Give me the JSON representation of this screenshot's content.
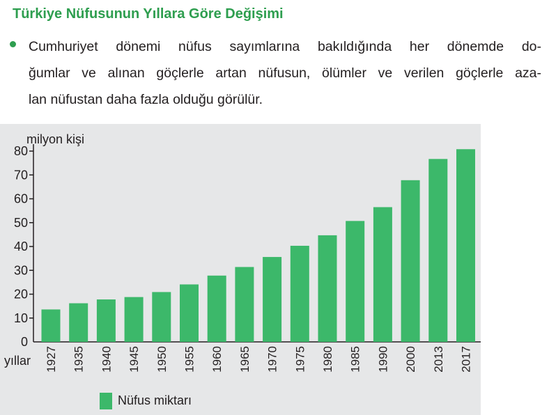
{
  "heading": "Türkiye Nüfusunun Yıllara Göre Değişimi",
  "paragraph_lines": [
    "Cumhuriyet dönemi nüfus sayımlarına bakıldığında her dönemde do-",
    "ğumlar ve alınan göçlerle artan nüfusun, ölümler ve verilen göçlerle aza-",
    "lan nüfustan daha fazla olduğu görülür."
  ],
  "colors": {
    "heading": "#2e9e4f",
    "bar": "#3cb86a",
    "chart_background": "#e6e7e8",
    "axis": "#231f20"
  },
  "chart_data": {
    "type": "bar",
    "ylabel": "milyon kişi",
    "xlabel": "yıllar",
    "categories": [
      "1927",
      "1935",
      "1940",
      "1945",
      "1950",
      "1955",
      "1960",
      "1965",
      "1970",
      "1975",
      "1980",
      "1985",
      "1990",
      "2000",
      "2013",
      "2017"
    ],
    "series": [
      {
        "name": "Nüfus miktarı",
        "values": [
          13.6,
          16.2,
          17.8,
          18.8,
          20.9,
          24.1,
          27.8,
          31.4,
          35.6,
          40.3,
          44.7,
          50.7,
          56.5,
          67.8,
          76.7,
          80.8
        ]
      }
    ],
    "ylim": [
      0,
      80
    ],
    "yticks": [
      0,
      10,
      20,
      30,
      40,
      50,
      60,
      70,
      80
    ],
    "grid": false,
    "legend": "bottom"
  }
}
